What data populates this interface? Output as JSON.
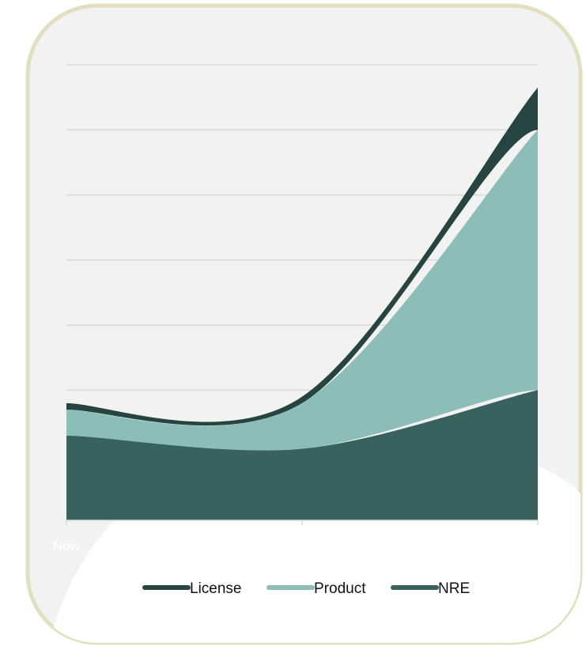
{
  "chart_data": {
    "type": "area",
    "stacked": true,
    "smooth": true,
    "title": "",
    "xlabel": "",
    "ylabel": "",
    "categories": [
      "Now",
      "",
      ""
    ],
    "x": [
      0,
      1,
      2
    ],
    "ylim": [
      0,
      7
    ],
    "y_gridlines": [
      1,
      2,
      3,
      4,
      5,
      6,
      7
    ],
    "legend_position": "bottom",
    "series": [
      {
        "name": "NRE",
        "values": [
          1.3,
          1.1,
          2.0
        ],
        "color": "#37625d"
      },
      {
        "name": "Product",
        "values": [
          0.4,
          0.7,
          4.0
        ],
        "color": "#8dbdb7"
      },
      {
        "name": "License",
        "values": [
          0.1,
          0.1,
          0.65
        ],
        "color": "#264440"
      }
    ],
    "legend_order": [
      "License",
      "Product",
      "NRE"
    ]
  },
  "colors": {
    "frame_border": "#e1dfbd",
    "frame_fill": "#f2f2f2",
    "gridline": "#d9d9d9",
    "axis_label": "#ffffff"
  }
}
